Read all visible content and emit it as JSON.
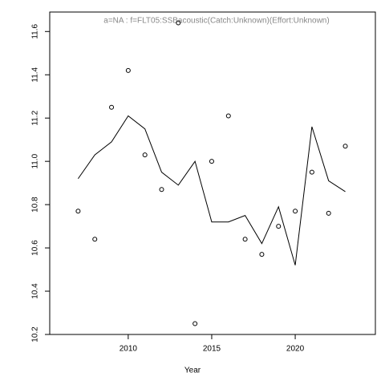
{
  "chart_data": {
    "type": "scatter",
    "title": "a=NA  :  f=FLT05:SSBacoustic(Catch:Unknown)(Effort:Unknown)",
    "x_label": "Year",
    "x": [
      2007,
      2008,
      2009,
      2010,
      2011,
      2012,
      2013,
      2014,
      2015,
      2016,
      2017,
      2018,
      2019,
      2020,
      2021,
      2022,
      2023
    ],
    "series": [
      {
        "style": "points",
        "color": "#000000",
        "values": [
          10.77,
          10.64,
          11.25,
          11.42,
          11.03,
          10.87,
          11.64,
          10.25,
          11.0,
          11.21,
          10.64,
          10.57,
          10.7,
          10.77,
          10.95,
          10.76,
          11.07
        ]
      },
      {
        "style": "line",
        "color": "#000000",
        "values": [
          10.92,
          11.03,
          11.09,
          11.21,
          11.15,
          10.95,
          10.89,
          11.0,
          10.72,
          10.72,
          10.75,
          10.62,
          10.79,
          10.52,
          11.16,
          10.91,
          10.86
        ]
      }
    ],
    "xlim": [
      2005.3,
      2024.8
    ],
    "xticks": [
      2010,
      2015,
      2020
    ],
    "ylim": [
      10.2,
      11.69
    ],
    "yticks": [
      10.2,
      10.4,
      10.6,
      10.8,
      {
        "value": 11,
        "label": "11.0"
      },
      11.2,
      11.4,
      11.6
    ]
  }
}
